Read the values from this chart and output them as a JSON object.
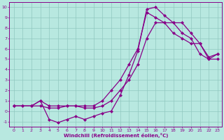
{
  "xlabel": "Windchill (Refroidissement éolien,°C)",
  "bg_color": "#b8e8e0",
  "grid_color": "#90c8c0",
  "line_color": "#880088",
  "marker": "D",
  "marker_size": 2.5,
  "xlim": [
    -0.5,
    23.5
  ],
  "ylim": [
    -1.5,
    10.5
  ],
  "xticks": [
    0,
    1,
    2,
    3,
    4,
    5,
    6,
    7,
    8,
    9,
    10,
    11,
    12,
    13,
    14,
    15,
    16,
    17,
    18,
    19,
    20,
    21,
    22,
    23
  ],
  "yticks": [
    -1,
    0,
    1,
    2,
    3,
    4,
    5,
    6,
    7,
    8,
    9,
    10
  ],
  "line1_x": [
    0,
    1,
    2,
    3,
    4,
    5,
    6,
    7,
    8,
    9,
    10,
    11,
    12,
    13,
    14,
    15,
    16,
    17,
    18,
    19,
    20,
    21,
    22,
    23
  ],
  "line1_y": [
    0.5,
    0.5,
    0.5,
    1.0,
    0.5,
    0.5,
    0.5,
    0.5,
    0.5,
    0.5,
    1.0,
    2.0,
    3.0,
    4.5,
    6.0,
    9.5,
    9.0,
    8.5,
    7.5,
    7.0,
    6.5,
    6.5,
    5.0,
    5.5
  ],
  "line2_x": [
    0,
    2,
    3,
    4,
    5,
    6,
    7,
    8,
    9,
    10,
    11,
    12,
    13,
    14,
    15,
    16,
    17,
    18,
    19,
    20,
    21,
    22,
    23
  ],
  "line2_y": [
    0.5,
    0.5,
    1.0,
    -0.8,
    -1.1,
    -0.8,
    -0.5,
    -0.8,
    -0.5,
    -0.2,
    0.0,
    1.5,
    3.5,
    5.8,
    9.8,
    10.0,
    9.2,
    8.5,
    8.5,
    7.5,
    6.5,
    5.2,
    5.5
  ],
  "line3_x": [
    0,
    1,
    2,
    3,
    4,
    5,
    6,
    7,
    8,
    9,
    10,
    11,
    12,
    13,
    14,
    15,
    16,
    17,
    18,
    19,
    20,
    21,
    22,
    23
  ],
  "line3_y": [
    0.5,
    0.5,
    0.5,
    0.5,
    0.3,
    0.3,
    0.5,
    0.5,
    0.3,
    0.3,
    0.5,
    1.0,
    2.0,
    3.0,
    4.5,
    7.0,
    8.5,
    8.5,
    8.5,
    7.5,
    7.0,
    5.5,
    5.0,
    5.0
  ]
}
